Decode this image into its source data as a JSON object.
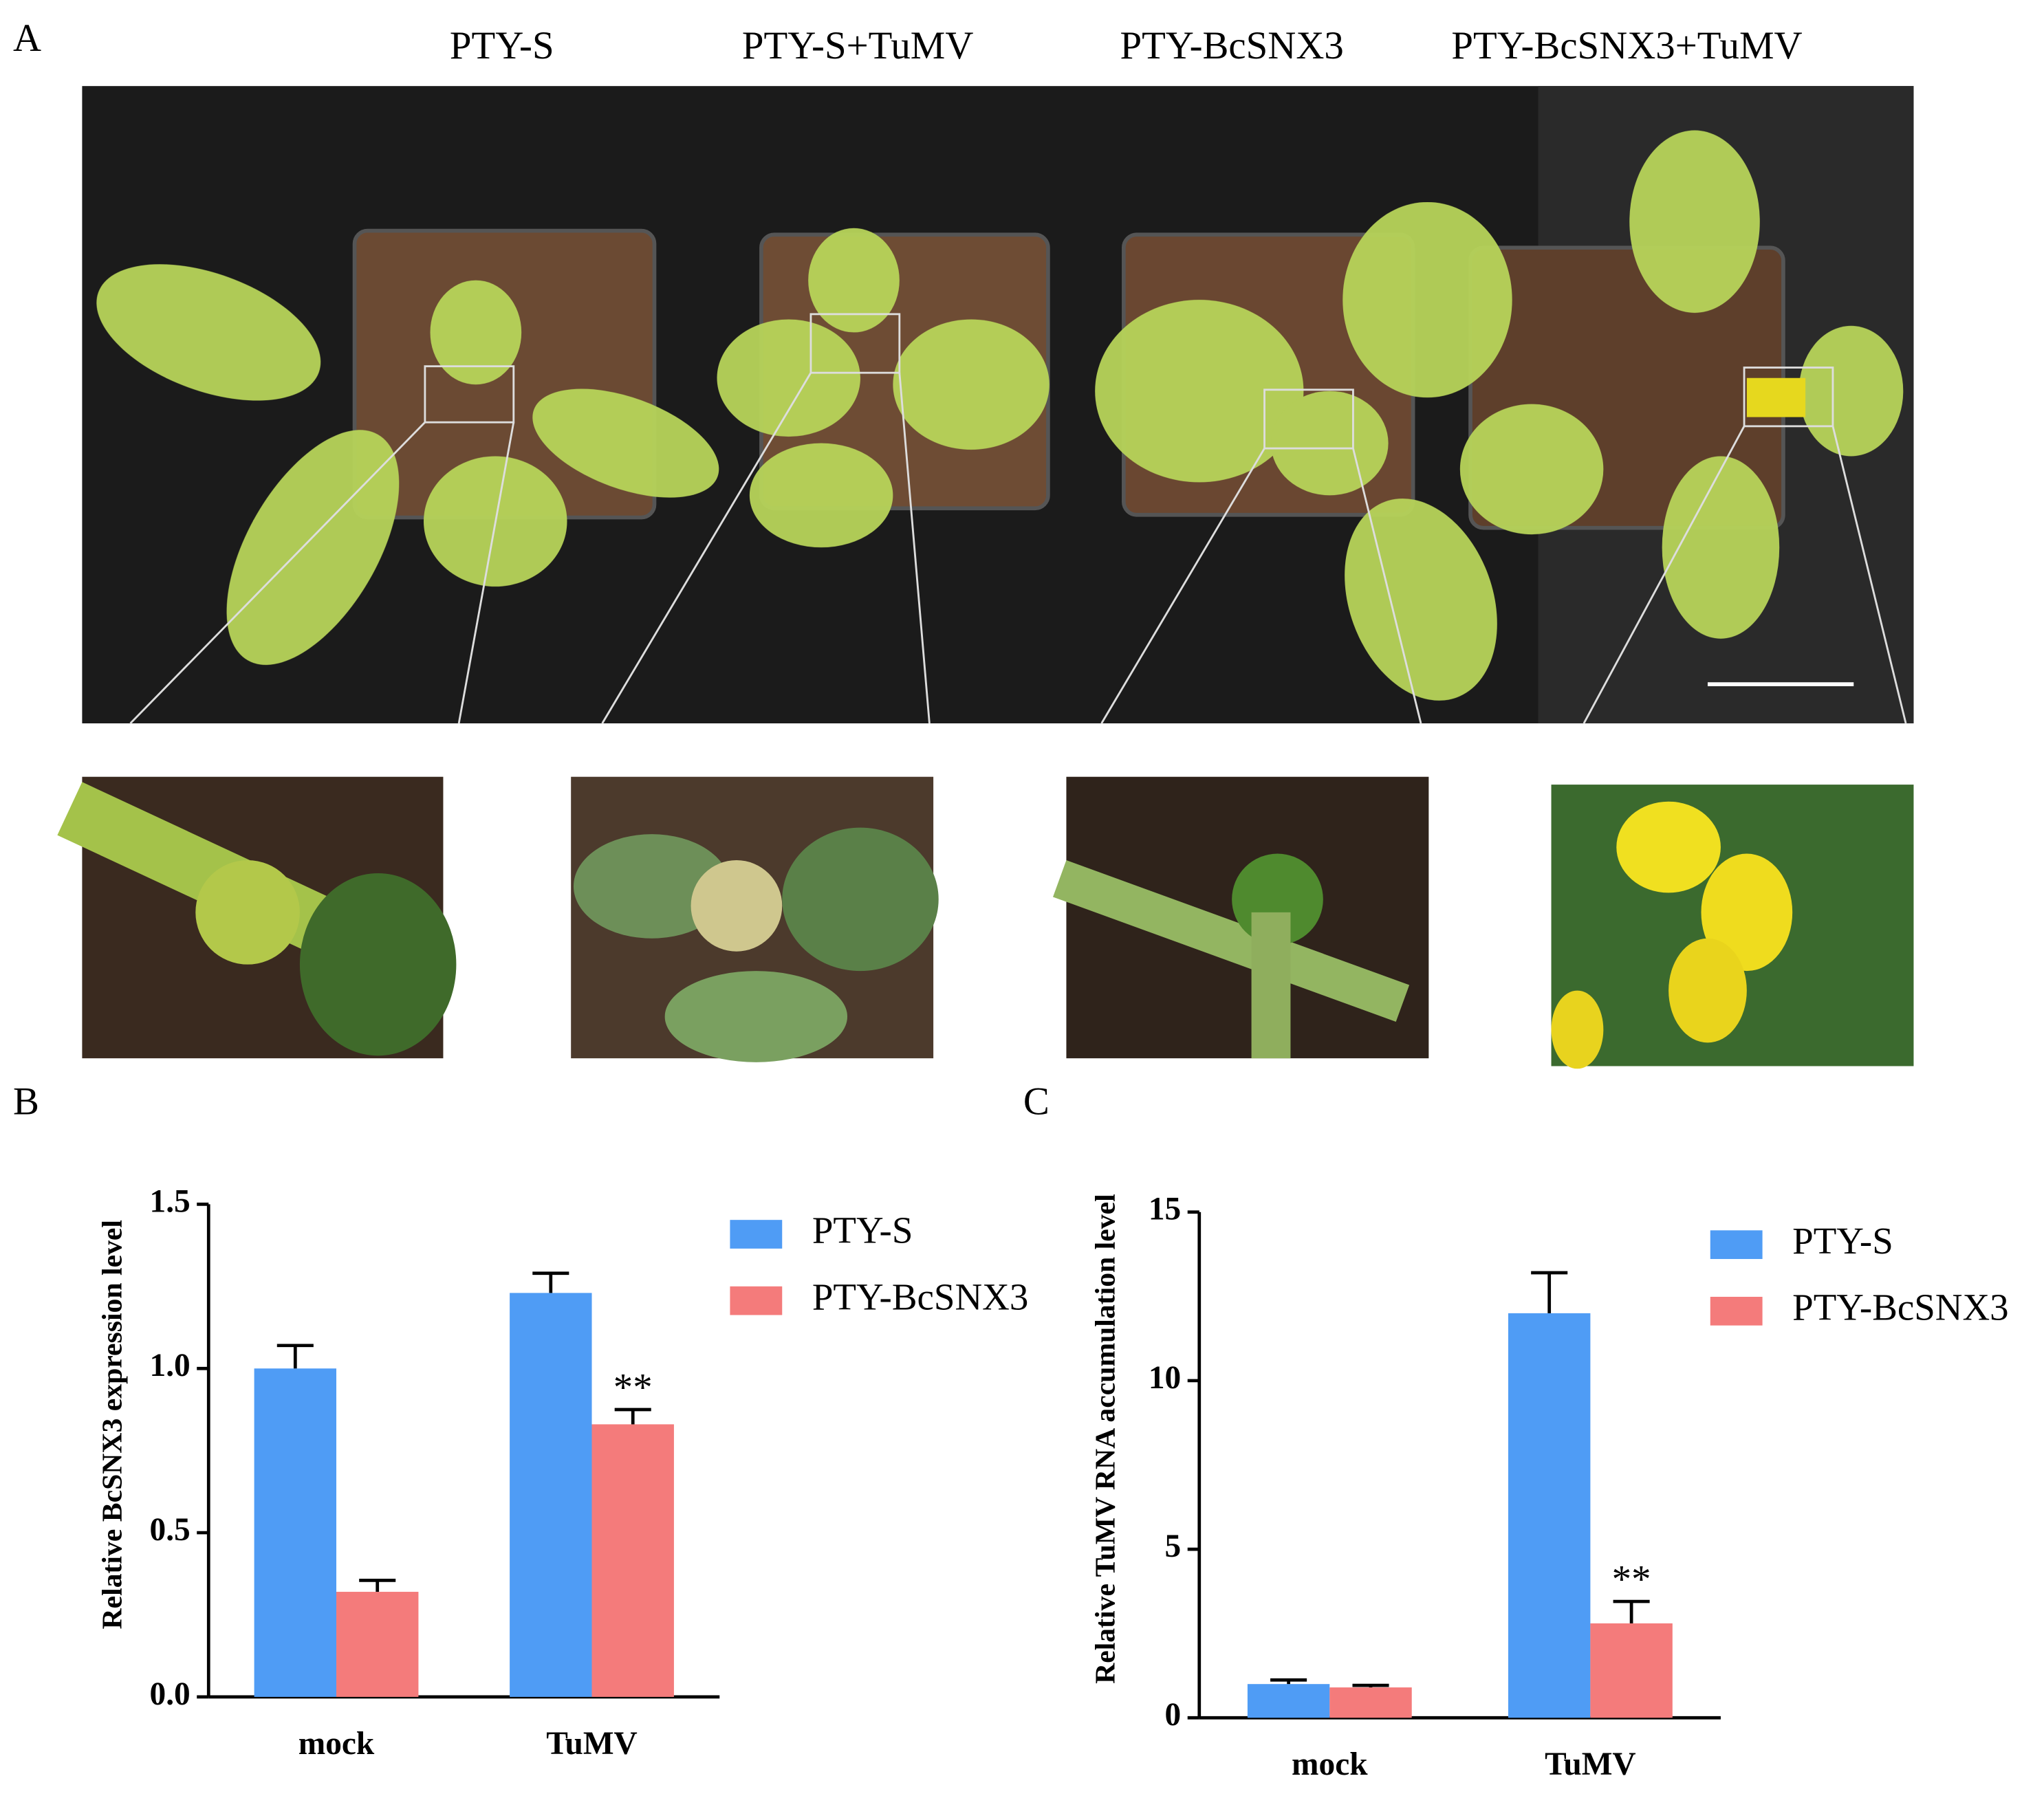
{
  "panel_labels": {
    "a": "A",
    "b": "B",
    "c": "C"
  },
  "photo_labels": [
    "PTY-S",
    "PTY-S+TuMV",
    "PTY-BcSNX3",
    "PTY-BcSNX3+TuMV"
  ],
  "chart_data": [
    {
      "type": "bar",
      "y_label": "Relative BcSNX3 expression level",
      "categories": [
        "mock",
        "TuMV"
      ],
      "series": [
        {
          "name": "PTY-S",
          "color": "#4f9cf5",
          "values": [
            1.0,
            1.23
          ],
          "errors": [
            0.07,
            0.06
          ],
          "annotations": [
            null,
            null
          ]
        },
        {
          "name": "PTY-BcSNX3",
          "color": "#f47b7b",
          "values": [
            0.32,
            0.83
          ],
          "errors": [
            0.035,
            0.045
          ],
          "annotations": [
            null,
            "**"
          ]
        }
      ],
      "ylim": [
        0,
        1.5
      ],
      "yticks": [
        {
          "value": 0,
          "label": "0.0"
        },
        0.5,
        {
          "value": 1,
          "label": "1.0"
        },
        1.5
      ],
      "legend": "upper right"
    },
    {
      "type": "bar",
      "y_label": "Relative TuMV RNA accumulation level",
      "categories": [
        "mock",
        "TuMV"
      ],
      "series": [
        {
          "name": "PTY-S",
          "color": "#4f9cf5",
          "values": [
            1.0,
            12.0
          ],
          "errors": [
            0.12,
            1.2
          ],
          "annotations": [
            null,
            null
          ]
        },
        {
          "name": "PTY-BcSNX3",
          "color": "#f47b7b",
          "values": [
            0.9,
            2.8
          ],
          "errors": [
            0.06,
            0.65
          ],
          "annotations": [
            null,
            "**"
          ]
        }
      ],
      "ylim": [
        0,
        15
      ],
      "yticks": [
        0,
        5,
        10,
        15
      ],
      "legend": "upper right"
    }
  ]
}
